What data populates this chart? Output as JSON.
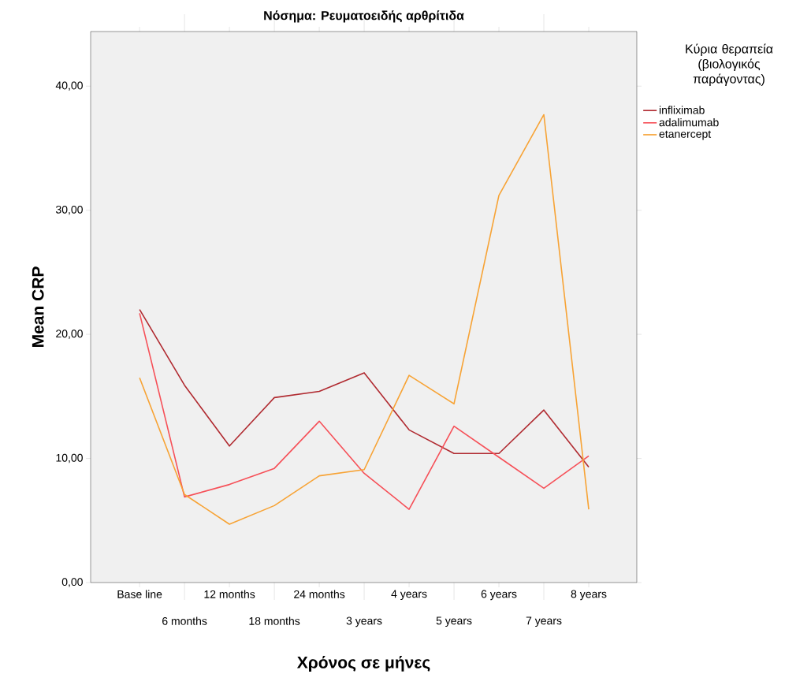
{
  "chart_data": {
    "type": "line",
    "title": "Νόσημα: Ρευματοειδής αρθρίτιδα",
    "xlabel": "Χρόνος σε μήνες",
    "ylabel": "Mean CRP",
    "legend_title": "Κύρια θεραπεία (βιολογικός παράγοντας)",
    "categories": [
      "Base line",
      "6 months",
      "12 months",
      "18 months",
      "24 months",
      "3 years",
      "4 years",
      "5 years",
      "6 years",
      "7 years",
      "8 years"
    ],
    "series": [
      {
        "name": "infliximab",
        "color": "#b02a30",
        "values": [
          22.0,
          15.9,
          11.0,
          14.9,
          15.4,
          16.9,
          12.3,
          10.4,
          10.4,
          13.9,
          9.3
        ]
      },
      {
        "name": "adalimumab",
        "color": "#f65058",
        "values": [
          21.7,
          6.9,
          7.9,
          9.2,
          13.0,
          8.8,
          5.9,
          12.6,
          10.1,
          7.6,
          10.2
        ]
      },
      {
        "name": "etanercept",
        "color": "#f7a335",
        "values": [
          16.5,
          7.1,
          4.7,
          6.2,
          8.6,
          9.1,
          16.7,
          14.4,
          31.2,
          37.7,
          5.9
        ]
      }
    ],
    "ylim": [
      0,
      44.4
    ],
    "yticks": [
      {
        "value": 0,
        "label": "0,00"
      },
      {
        "value": 10,
        "label": "10,00"
      },
      {
        "value": 20,
        "label": "20,00"
      },
      {
        "value": 30,
        "label": "30,00"
      },
      {
        "value": 40,
        "label": "40,00"
      }
    ],
    "legend": "right",
    "grid": false,
    "marker": "none",
    "line_style": "solid"
  }
}
